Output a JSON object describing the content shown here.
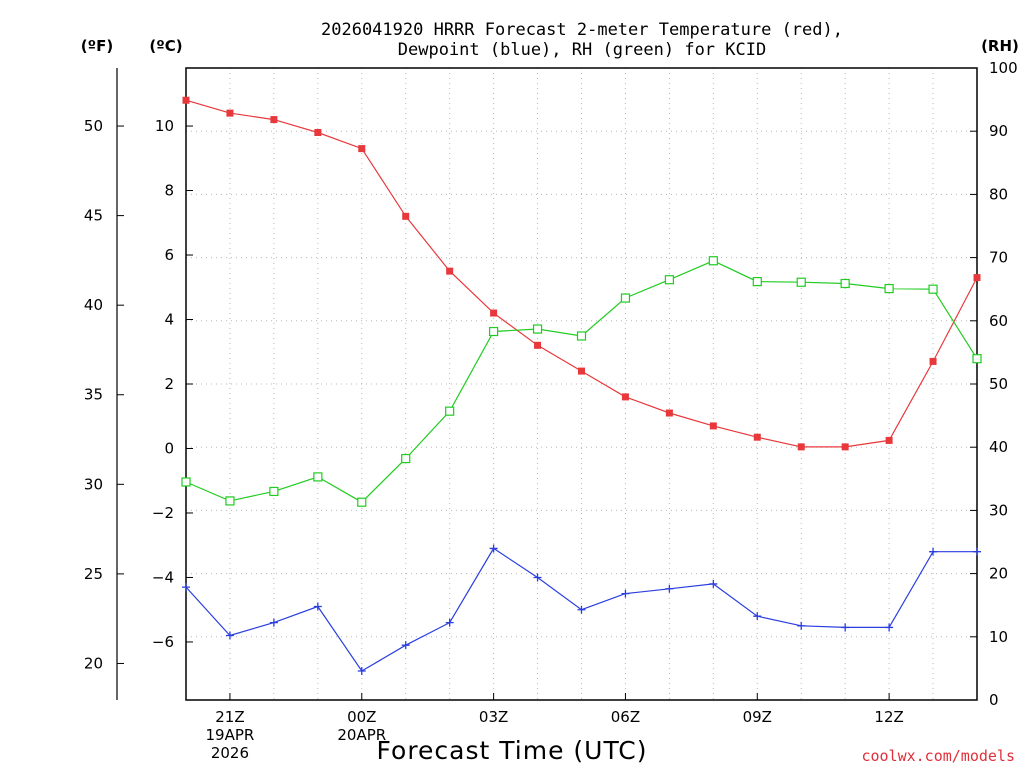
{
  "chart_data": {
    "type": "line",
    "title": [
      "2026041920 HRRR Forecast 2-meter Temperature (red),",
      "Dewpoint (blue), RH (green) for KCID"
    ],
    "xlabel": "Forecast Time (UTC)",
    "credit": "coolwx.com/models",
    "units": {
      "left_outer": "(ºF)",
      "left_inner": "(ºC)",
      "right": "(RH)"
    },
    "x_hours": [
      20,
      21,
      22,
      23,
      24,
      25,
      26,
      27,
      28,
      29,
      30,
      31,
      32,
      33,
      34,
      35,
      36,
      37,
      38
    ],
    "x_range": [
      20,
      38
    ],
    "x_ticks": [
      {
        "hour": 21,
        "lines": [
          "21Z",
          "19APR",
          "2026"
        ]
      },
      {
        "hour": 24,
        "lines": [
          "00Z",
          "20APR"
        ]
      },
      {
        "hour": 27,
        "lines": [
          "03Z"
        ]
      },
      {
        "hour": 30,
        "lines": [
          "06Z"
        ]
      },
      {
        "hour": 33,
        "lines": [
          "09Z"
        ]
      },
      {
        "hour": 36,
        "lines": [
          "12Z"
        ]
      }
    ],
    "celsius_axis": {
      "range": [
        -7.8,
        11.8
      ],
      "ticks": [
        -6,
        -4,
        -2,
        0,
        2,
        4,
        6,
        8,
        10
      ],
      "tick_labels": [
        "−6",
        "−4",
        "−2",
        "0",
        "2",
        "4",
        "6",
        "8",
        "10"
      ]
    },
    "fahrenheit_axis": {
      "ticks": [
        20,
        25,
        30,
        35,
        40,
        45,
        50
      ],
      "tick_labels": [
        "20",
        "25",
        "30",
        "35",
        "40",
        "45",
        "50"
      ]
    },
    "rh_axis": {
      "range": [
        0,
        100
      ],
      "ticks": [
        0,
        10,
        20,
        30,
        40,
        50,
        60,
        70,
        80,
        90,
        100
      ],
      "tick_labels": [
        "0",
        "10",
        "20",
        "30",
        "40",
        "50",
        "60",
        "70",
        "80",
        "90",
        "100"
      ]
    },
    "series": [
      {
        "name": "Temperature",
        "unit": "C",
        "color": "#e8383c",
        "marker": "filled-square",
        "values": [
          10.8,
          10.4,
          10.2,
          9.8,
          9.3,
          7.2,
          5.5,
          4.2,
          3.2,
          2.4,
          1.6,
          1.1,
          0.7,
          0.35,
          0.05,
          0.05,
          0.25,
          2.7,
          5.3
        ]
      },
      {
        "name": "Dewpoint",
        "unit": "C",
        "color": "#2a3ee0",
        "marker": "plus",
        "values": [
          -4.3,
          -5.8,
          -5.4,
          -4.9,
          -6.9,
          -6.1,
          -5.4,
          -3.1,
          -4.0,
          -5.0,
          -4.5,
          -4.35,
          -4.2,
          -5.2,
          -5.5,
          -5.55,
          -5.55,
          -3.2,
          -3.2
        ]
      },
      {
        "name": "RH",
        "unit": "%",
        "color": "#20cc20",
        "marker": "open-square",
        "values": [
          34.5,
          31.5,
          33.0,
          35.3,
          31.3,
          38.2,
          45.7,
          58.3,
          58.7,
          57.6,
          63.6,
          66.5,
          69.5,
          66.2,
          66.1,
          65.9,
          65.1,
          65.0,
          54.0
        ]
      }
    ]
  }
}
